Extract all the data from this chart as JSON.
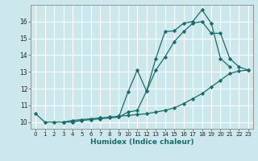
{
  "xlabel": "Humidex (Indice chaleur)",
  "bg_color": "#cce8ec",
  "grid_color": "#ffffff",
  "line_color": "#1a6b6b",
  "xlim": [
    -0.5,
    23.5
  ],
  "ylim": [
    9.6,
    17.0
  ],
  "yticks": [
    10,
    11,
    12,
    13,
    14,
    15,
    16
  ],
  "xticks": [
    0,
    1,
    2,
    3,
    4,
    5,
    6,
    7,
    8,
    9,
    10,
    11,
    12,
    13,
    14,
    15,
    16,
    17,
    18,
    19,
    20,
    21,
    22,
    23
  ],
  "line1_x": [
    0,
    1,
    2,
    3,
    4,
    5,
    6,
    7,
    8,
    9,
    10,
    11,
    12,
    13,
    14,
    15,
    16,
    17,
    18,
    19,
    20,
    21
  ],
  "line1_y": [
    10.5,
    10.0,
    10.0,
    10.0,
    10.0,
    10.1,
    10.15,
    10.2,
    10.25,
    10.3,
    11.8,
    13.1,
    11.85,
    13.8,
    15.4,
    15.45,
    15.9,
    16.0,
    16.7,
    15.9,
    13.8,
    13.3
  ],
  "line2_x": [
    3,
    4,
    5,
    6,
    7,
    8,
    9,
    10,
    11,
    12,
    13,
    14,
    15,
    16,
    17,
    18,
    19,
    20,
    21,
    22,
    23
  ],
  "line2_y": [
    10.0,
    10.1,
    10.15,
    10.2,
    10.25,
    10.3,
    10.35,
    10.4,
    10.45,
    10.5,
    10.6,
    10.7,
    10.85,
    11.1,
    11.4,
    11.7,
    12.1,
    12.5,
    12.9,
    13.05,
    13.1
  ],
  "line3_x": [
    9,
    10,
    11,
    12,
    13,
    14,
    15,
    16,
    17,
    18,
    19,
    20,
    21,
    22,
    23
  ],
  "line3_y": [
    10.3,
    10.6,
    10.7,
    11.85,
    13.1,
    13.9,
    14.8,
    15.4,
    15.9,
    16.0,
    15.3,
    15.3,
    13.8,
    13.3,
    13.1
  ]
}
